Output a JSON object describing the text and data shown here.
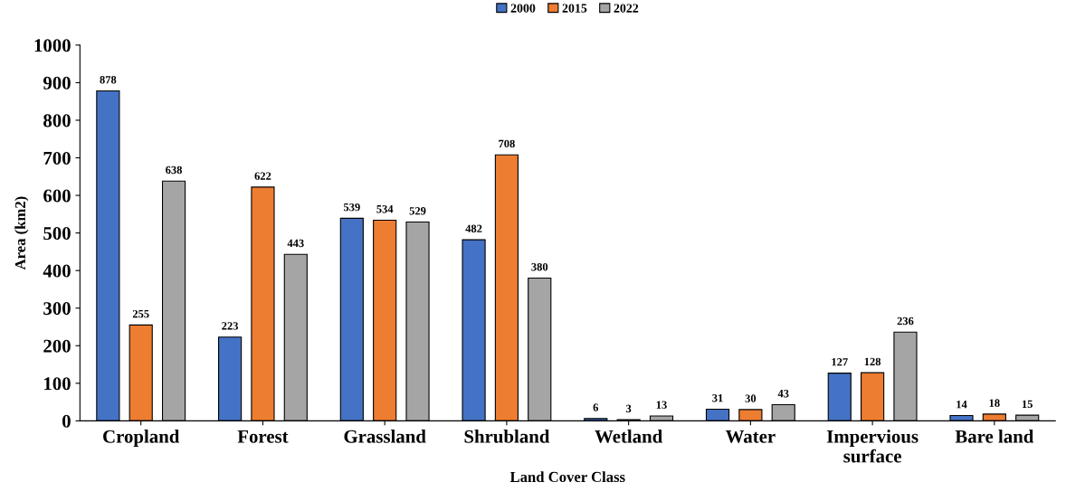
{
  "chart_data": {
    "type": "bar",
    "xlabel": "Land Cover Class",
    "ylabel": "Area (km2)",
    "categories": [
      "Cropland",
      "Forest",
      "Grassland",
      "Shrubland",
      "Wetland",
      "Water",
      "Impervious\nsurface",
      "Bare land"
    ],
    "series": [
      {
        "name": "2000",
        "color": "#4472c4",
        "values": [
          878,
          223,
          539,
          482,
          6,
          31,
          127,
          14
        ]
      },
      {
        "name": "2015",
        "color": "#ed7d31",
        "values": [
          255,
          622,
          534,
          708,
          3,
          30,
          128,
          18
        ]
      },
      {
        "name": "2022",
        "color": "#a5a5a5",
        "values": [
          638,
          443,
          529,
          380,
          13,
          43,
          236,
          15
        ]
      }
    ],
    "ylim": [
      0,
      1000
    ],
    "yticks": [
      0,
      100,
      200,
      300,
      400,
      500,
      600,
      700,
      800,
      900,
      1000
    ],
    "data_labels": true,
    "grid": false,
    "legend": "top"
  }
}
